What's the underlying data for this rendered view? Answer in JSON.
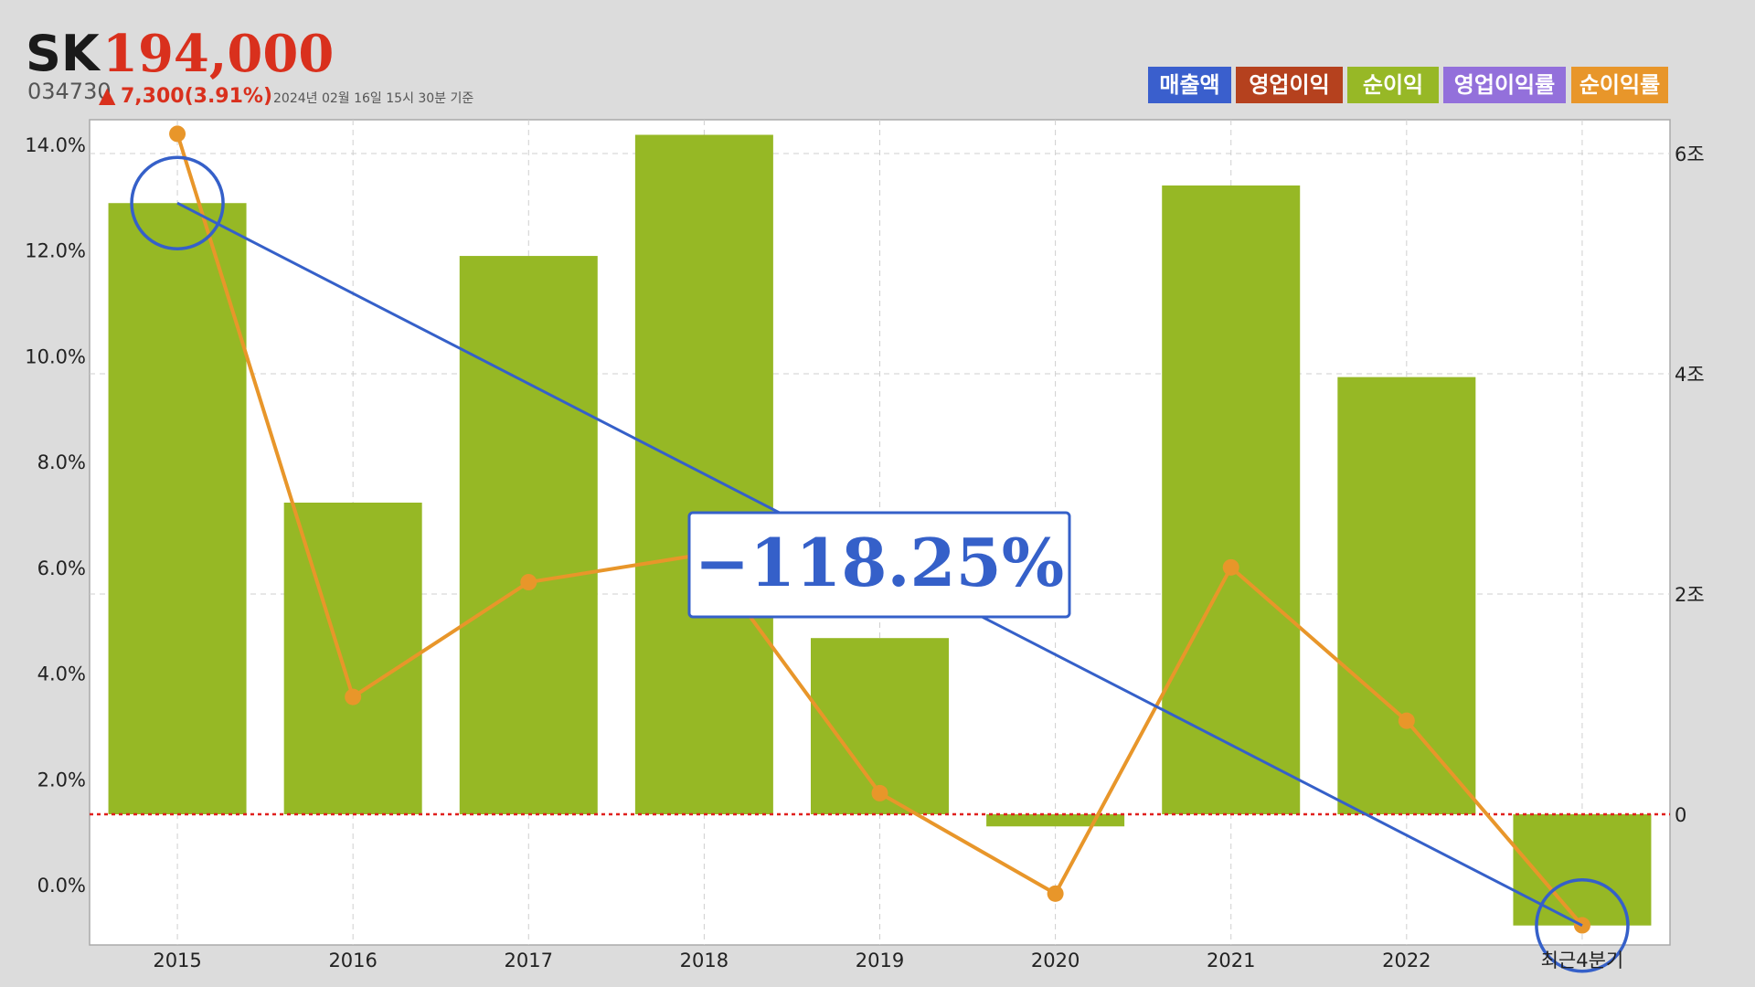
{
  "header": {
    "name": "SK",
    "price": "194,000",
    "code": "034730",
    "change_arrow": "▲",
    "change": "7,300(3.91%)",
    "timestamp": "2024년 02월 16일 15시 30분 기준"
  },
  "legend": [
    {
      "label": "매출액",
      "color": "#3a5fcd"
    },
    {
      "label": "영업이익",
      "color": "#b5411e"
    },
    {
      "label": "순이익",
      "color": "#97b826"
    },
    {
      "label": "영업이익률",
      "color": "#9370db"
    },
    {
      "label": "순이익률",
      "color": "#e8962a"
    }
  ],
  "annotation": {
    "label": "−118.25%",
    "color": "#3560c9"
  },
  "colors": {
    "bar": "#96b825",
    "line": "#e8962a",
    "trend": "#3560c9",
    "zero": "#e0201e"
  },
  "chart_data": {
    "type": "bar",
    "categories": [
      "2015",
      "2016",
      "2017",
      "2018",
      "2019",
      "2020",
      "2021",
      "2022",
      "최근4분기"
    ],
    "series": [
      {
        "name": "순이익",
        "axis": "right",
        "type": "bar",
        "values": [
          5.55,
          2.83,
          5.07,
          6.17,
          1.6,
          -0.11,
          5.71,
          3.97,
          -1.01
        ]
      },
      {
        "name": "순이익률",
        "axis": "left",
        "type": "line",
        "values": [
          14.2,
          3.55,
          5.72,
          6.25,
          1.73,
          -0.17,
          6.0,
          3.1,
          -0.77
        ]
      }
    ],
    "trend_line": {
      "from_category": "2015",
      "to_category": "최근4분기",
      "label": "−118.25%"
    },
    "y_left": {
      "ticks": [
        "0.0%",
        "2.0%",
        "4.0%",
        "6.0%",
        "8.0%",
        "10.0%",
        "12.0%",
        "14.0%"
      ],
      "range": [
        -1.1,
        14.5
      ]
    },
    "y_right": {
      "ticks": [
        "0",
        "2조",
        "4조",
        "6조"
      ],
      "range": [
        -1.2,
        6.3
      ]
    },
    "grid": true
  }
}
